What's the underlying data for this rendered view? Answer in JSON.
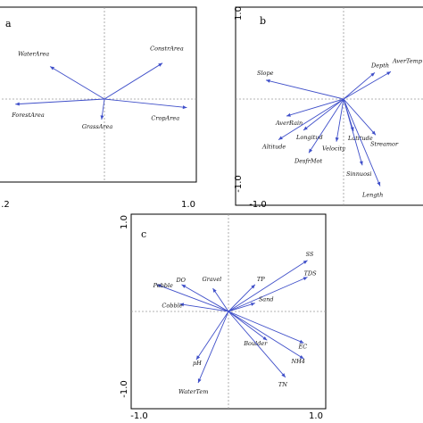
{
  "colors": {
    "arrow": "#3f4fc9",
    "frame": "#000000",
    "axis_dash": "#9a9a9a"
  },
  "chart_data": [
    {
      "type": "biplot",
      "panel_label": "a",
      "tick_labels": {
        "x_left": ".2",
        "x_right": "1.0"
      },
      "xlim": [
        -1.0,
        1.0
      ],
      "ylim": [
        -1.0,
        1.0
      ],
      "vectors": [
        {
          "name": "ConstrArea",
          "x": 0.62,
          "y": 0.42
        },
        {
          "name": "WaterArea",
          "x": -0.58,
          "y": 0.38
        },
        {
          "name": "ForestArea",
          "x": -0.95,
          "y": -0.06
        },
        {
          "name": "GrassArea",
          "x": -0.03,
          "y": -0.24
        },
        {
          "name": "CropArea",
          "x": 0.88,
          "y": -0.1
        }
      ]
    },
    {
      "type": "biplot",
      "panel_label": "b",
      "tick_labels": {
        "y_top": "1.0",
        "y_bottom": "-1.0",
        "x_left": "-1.0"
      },
      "xlim": [
        -1.0,
        1.0
      ],
      "ylim": [
        -1.0,
        1.0
      ],
      "vectors": [
        {
          "name": "Slope",
          "x": -0.87,
          "y": 0.2
        },
        {
          "name": "Depth",
          "x": 0.35,
          "y": 0.28
        },
        {
          "name": "AverTemp",
          "x": 0.53,
          "y": 0.29
        },
        {
          "name": "AverRain",
          "x": -0.64,
          "y": -0.18
        },
        {
          "name": "Longitud",
          "x": -0.45,
          "y": -0.33
        },
        {
          "name": "Altitude",
          "x": -0.73,
          "y": -0.43
        },
        {
          "name": "DesfrMot",
          "x": -0.39,
          "y": -0.57
        },
        {
          "name": "Velocity",
          "x": -0.08,
          "y": -0.45
        },
        {
          "name": "Latitude",
          "x": 0.11,
          "y": -0.34
        },
        {
          "name": "Streamor",
          "x": 0.36,
          "y": -0.38
        },
        {
          "name": "Sinnuosi",
          "x": 0.21,
          "y": -0.7
        },
        {
          "name": "Length",
          "x": 0.41,
          "y": -0.92
        }
      ]
    },
    {
      "type": "biplot",
      "panel_label": "c",
      "tick_labels": {
        "y_top": "1.0",
        "y_bottom": "-1.0",
        "x_left": "-1.0",
        "x_right": "1.0"
      },
      "xlim": [
        -1.0,
        1.0
      ],
      "ylim": [
        -1.0,
        1.0
      ],
      "vectors": [
        {
          "name": "SS",
          "x": 0.86,
          "y": 0.55
        },
        {
          "name": "TDS",
          "x": 0.86,
          "y": 0.37
        },
        {
          "name": "TP",
          "x": 0.29,
          "y": 0.29
        },
        {
          "name": "Sand",
          "x": 0.29,
          "y": 0.09
        },
        {
          "name": "Gravel",
          "x": -0.17,
          "y": 0.25
        },
        {
          "name": "Pebble",
          "x": -0.78,
          "y": 0.29
        },
        {
          "name": "DO",
          "x": -0.51,
          "y": 0.29
        },
        {
          "name": "Cobble",
          "x": -0.53,
          "y": 0.08
        },
        {
          "name": "Boulder",
          "x": 0.42,
          "y": -0.31
        },
        {
          "name": "EC",
          "x": 0.82,
          "y": -0.34
        },
        {
          "name": "NH4",
          "x": 0.82,
          "y": -0.51
        },
        {
          "name": "pH",
          "x": -0.35,
          "y": -0.52
        },
        {
          "name": "WaterTem",
          "x": -0.33,
          "y": -0.77
        },
        {
          "name": "TN",
          "x": 0.62,
          "y": -0.71
        }
      ]
    }
  ]
}
